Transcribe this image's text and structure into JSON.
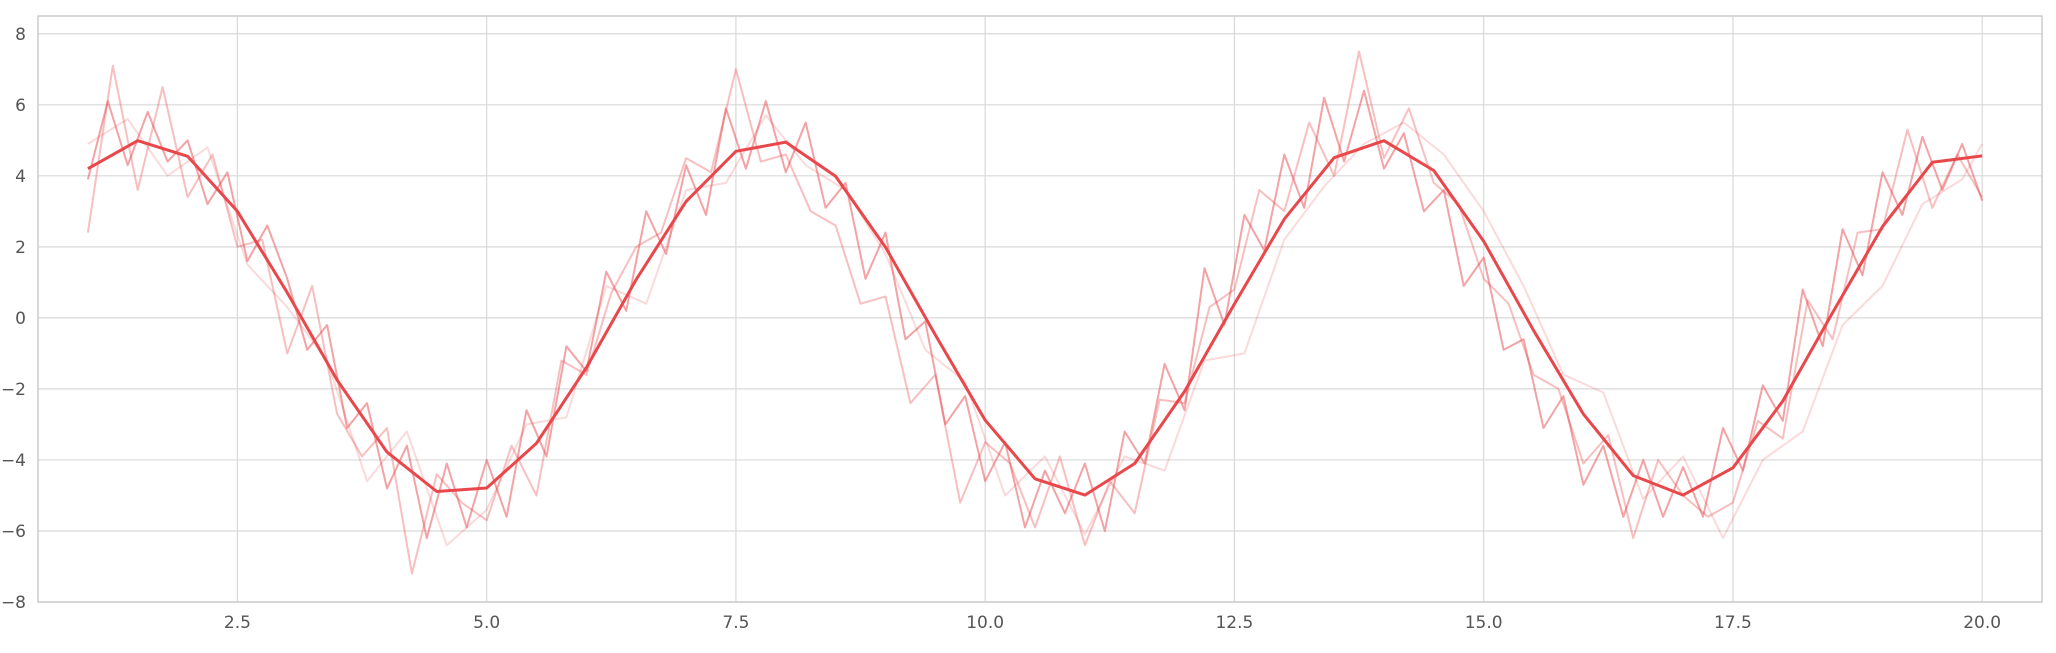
{
  "chart_data": {
    "type": "line",
    "title": "",
    "xlabel": "",
    "ylabel": "",
    "xlim": [
      0.5,
      20.6
    ],
    "ylim": [
      -8,
      8.5
    ],
    "x_ticks": [
      2.5,
      5.0,
      7.5,
      10.0,
      12.5,
      15.0,
      17.5,
      20.0
    ],
    "x_tick_labels": [
      "2.5",
      "5.0",
      "7.5",
      "10.0",
      "12.5",
      "15.0",
      "17.5",
      "20.0"
    ],
    "y_ticks": [
      -8,
      -6,
      -4,
      -2,
      0,
      2,
      4,
      6,
      8
    ],
    "y_tick_labels": [
      "−8",
      "−6",
      "−4",
      "−2",
      "0",
      "2",
      "4",
      "6",
      "8"
    ],
    "grid": true,
    "legend": "none",
    "colors": {
      "line": "#e8474b",
      "grid": "#d9d9d9",
      "spine": "#cccccc"
    },
    "series": [
      {
        "role": "mean",
        "style": "solid",
        "opacity": 1.0,
        "x": [
          1.0,
          1.5,
          2.0,
          2.5,
          3.0,
          3.5,
          4.0,
          4.5,
          5.0,
          5.5,
          6.0,
          6.5,
          7.0,
          7.5,
          8.0,
          8.5,
          9.0,
          9.5,
          10.0,
          10.5,
          11.0,
          11.5,
          12.0,
          12.5,
          13.0,
          13.5,
          14.0,
          14.5,
          15.0,
          15.5,
          16.0,
          16.5,
          17.0,
          17.5,
          18.0,
          18.5,
          19.0,
          19.5,
          20.0
        ],
        "y": [
          4.2,
          4.99,
          4.55,
          3.0,
          0.71,
          -1.75,
          -3.78,
          -4.89,
          -4.79,
          -3.53,
          -1.4,
          1.08,
          3.28,
          4.69,
          4.95,
          3.99,
          1.99,
          -0.48,
          -2.88,
          -4.53,
          -4.99,
          -4.1,
          -2.07,
          0.39,
          2.78,
          4.51,
          4.99,
          4.15,
          2.16,
          -0.35,
          -2.71,
          -4.44,
          -4.99,
          -4.22,
          -2.34,
          0.15,
          2.57,
          4.38,
          4.56
        ]
      },
      {
        "role": "trial",
        "style": "solid",
        "opacity": 0.5,
        "x": [
          1.0,
          1.2,
          1.4,
          1.6,
          1.8,
          2.0,
          2.2,
          2.4,
          2.6,
          2.8,
          3.0,
          3.2,
          3.4,
          3.6,
          3.8,
          4.0,
          4.2,
          4.4,
          4.6,
          4.8,
          5.0,
          5.2,
          5.4,
          5.6,
          5.8,
          6.0,
          6.2,
          6.4,
          6.6,
          6.8,
          7.0,
          7.2,
          7.4,
          7.6,
          7.8,
          8.0,
          8.2,
          8.4,
          8.6,
          8.8,
          9.0,
          9.2,
          9.4,
          9.6,
          9.8,
          10.0,
          10.2,
          10.4,
          10.6,
          10.8,
          11.0,
          11.2,
          11.4,
          11.6,
          11.8,
          12.0,
          12.2,
          12.4,
          12.6,
          12.8,
          13.0,
          13.2,
          13.4,
          13.6,
          13.8,
          14.0,
          14.2,
          14.4,
          14.6,
          14.8,
          15.0,
          15.2,
          15.4,
          15.6,
          15.8,
          16.0,
          16.2,
          16.4,
          16.6,
          16.8,
          17.0,
          17.2,
          17.4,
          17.6,
          17.8,
          18.0,
          18.2,
          18.4,
          18.6,
          18.8,
          19.0,
          19.2,
          19.4,
          19.6,
          19.8,
          20.0
        ],
        "y": [
          3.9,
          6.1,
          4.3,
          5.8,
          4.4,
          5.0,
          3.2,
          4.1,
          1.6,
          2.6,
          1.1,
          -0.9,
          -0.2,
          -3.1,
          -2.4,
          -4.8,
          -3.6,
          -6.2,
          -4.1,
          -5.9,
          -4.0,
          -5.6,
          -2.6,
          -3.9,
          -0.8,
          -1.5,
          1.3,
          0.2,
          3.0,
          1.8,
          4.3,
          2.9,
          5.9,
          4.2,
          6.1,
          4.1,
          5.5,
          3.1,
          3.8,
          1.1,
          2.4,
          -0.6,
          -0.1,
          -3.0,
          -2.2,
          -4.6,
          -3.5,
          -5.9,
          -4.3,
          -5.5,
          -4.1,
          -6.0,
          -3.2,
          -4.1,
          -1.3,
          -2.6,
          1.4,
          -0.2,
          2.9,
          1.9,
          4.6,
          3.1,
          6.2,
          4.4,
          6.4,
          4.2,
          5.2,
          3.0,
          3.6,
          0.9,
          1.7,
          -0.9,
          -0.6,
          -3.1,
          -2.2,
          -4.7,
          -3.6,
          -5.6,
          -4.0,
          -5.6,
          -4.2,
          -5.6,
          -3.1,
          -4.3,
          -1.9,
          -2.9,
          0.8,
          -0.8,
          2.5,
          1.2,
          4.1,
          2.9,
          5.1,
          3.6,
          4.9,
          3.3
        ]
      },
      {
        "role": "trial",
        "style": "solid",
        "opacity": 0.35,
        "x": [
          1.0,
          1.25,
          1.5,
          1.75,
          2.0,
          2.25,
          2.5,
          2.75,
          3.0,
          3.25,
          3.5,
          3.75,
          4.0,
          4.25,
          4.5,
          4.75,
          5.0,
          5.25,
          5.5,
          5.75,
          6.0,
          6.25,
          6.5,
          6.75,
          7.0,
          7.25,
          7.5,
          7.75,
          8.0,
          8.25,
          8.5,
          8.75,
          9.0,
          9.25,
          9.5,
          9.75,
          10.0,
          10.25,
          10.5,
          10.75,
          11.0,
          11.25,
          11.5,
          11.75,
          12.0,
          12.25,
          12.5,
          12.75,
          13.0,
          13.25,
          13.5,
          13.75,
          14.0,
          14.25,
          14.5,
          14.75,
          15.0,
          15.25,
          15.5,
          15.75,
          16.0,
          16.25,
          16.5,
          16.75,
          17.0,
          17.25,
          17.5,
          17.75,
          18.0,
          18.25,
          18.5,
          18.75,
          19.0,
          19.25,
          19.5,
          19.75,
          20.0
        ],
        "y": [
          2.4,
          7.1,
          3.6,
          6.5,
          3.4,
          4.6,
          2.0,
          2.2,
          -1.0,
          0.9,
          -2.7,
          -3.9,
          -3.1,
          -7.2,
          -4.4,
          -5.2,
          -5.7,
          -3.6,
          -5.0,
          -1.2,
          -1.6,
          0.7,
          2.0,
          2.4,
          4.5,
          4.1,
          7.0,
          4.4,
          4.6,
          3.0,
          2.6,
          0.4,
          0.6,
          -2.4,
          -1.6,
          -5.2,
          -3.5,
          -4.1,
          -5.9,
          -3.9,
          -6.4,
          -4.6,
          -5.5,
          -2.3,
          -2.4,
          0.3,
          0.8,
          3.6,
          3.0,
          5.5,
          4.0,
          7.5,
          4.5,
          5.9,
          3.8,
          3.2,
          1.1,
          0.4,
          -1.6,
          -2.0,
          -4.1,
          -3.3,
          -6.2,
          -4.0,
          -5.0,
          -5.6,
          -5.2,
          -2.9,
          -3.4,
          0.5,
          -0.6,
          2.4,
          2.5,
          5.3,
          3.1,
          4.6,
          3.4
        ]
      },
      {
        "role": "trial",
        "style": "solid",
        "opacity": 0.2,
        "x": [
          1.0,
          1.4,
          1.8,
          2.2,
          2.6,
          3.0,
          3.4,
          3.8,
          4.2,
          4.6,
          5.0,
          5.4,
          5.8,
          6.2,
          6.6,
          7.0,
          7.4,
          7.8,
          8.2,
          8.6,
          9.0,
          9.4,
          9.8,
          10.2,
          10.6,
          11.0,
          11.4,
          11.8,
          12.2,
          12.6,
          13.0,
          13.4,
          13.8,
          14.2,
          14.6,
          15.0,
          15.4,
          15.8,
          16.2,
          16.6,
          17.0,
          17.4,
          17.8,
          18.2,
          18.6,
          19.0,
          19.4,
          19.8,
          20.0
        ],
        "y": [
          4.9,
          5.6,
          4.0,
          4.8,
          1.5,
          0.3,
          -1.2,
          -4.6,
          -3.2,
          -6.4,
          -5.4,
          -3.0,
          -2.8,
          0.9,
          0.4,
          3.6,
          3.8,
          5.7,
          4.3,
          3.6,
          1.8,
          -0.9,
          -1.8,
          -5.0,
          -3.9,
          -6.1,
          -3.9,
          -4.3,
          -1.2,
          -1.0,
          2.2,
          3.7,
          4.9,
          5.5,
          4.6,
          3.0,
          0.9,
          -1.6,
          -2.1,
          -5.1,
          -3.9,
          -6.2,
          -4.0,
          -3.2,
          -0.2,
          0.9,
          3.2,
          3.9,
          4.9
        ]
      }
    ]
  }
}
